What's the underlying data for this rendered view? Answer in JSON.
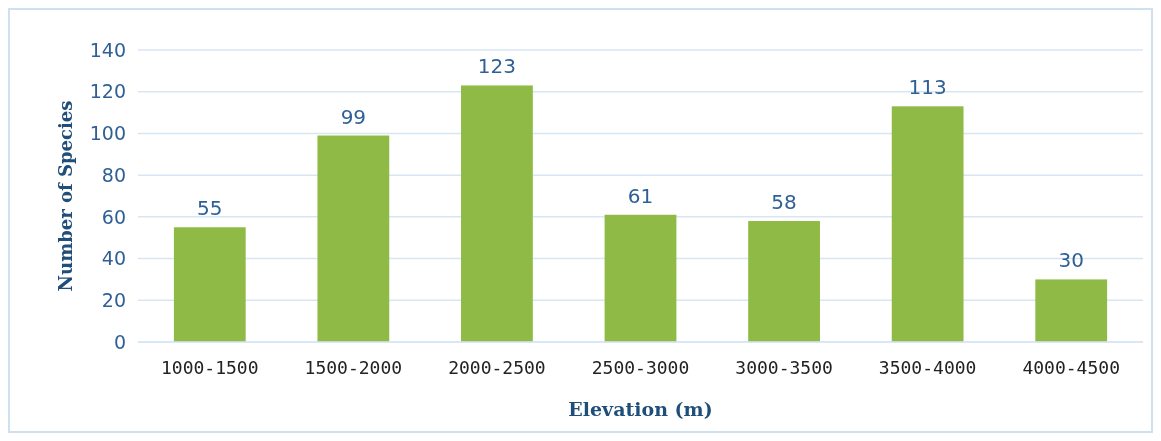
{
  "chart_data": {
    "type": "bar",
    "xlabel": "Elevation (m)",
    "ylabel": "Number of Species",
    "categories": [
      "1000-1500",
      "1500-2000",
      "2000-2500",
      "2500-3000",
      "3000-3500",
      "3500-4000",
      "4000-4500"
    ],
    "values": [
      55,
      99,
      123,
      61,
      58,
      113,
      30
    ],
    "color": "#8fba45",
    "ylim": [
      0,
      140
    ],
    "yticks": [
      0,
      20,
      40,
      60,
      80,
      100,
      120,
      140
    ],
    "grid": "y",
    "data_labels": true
  }
}
